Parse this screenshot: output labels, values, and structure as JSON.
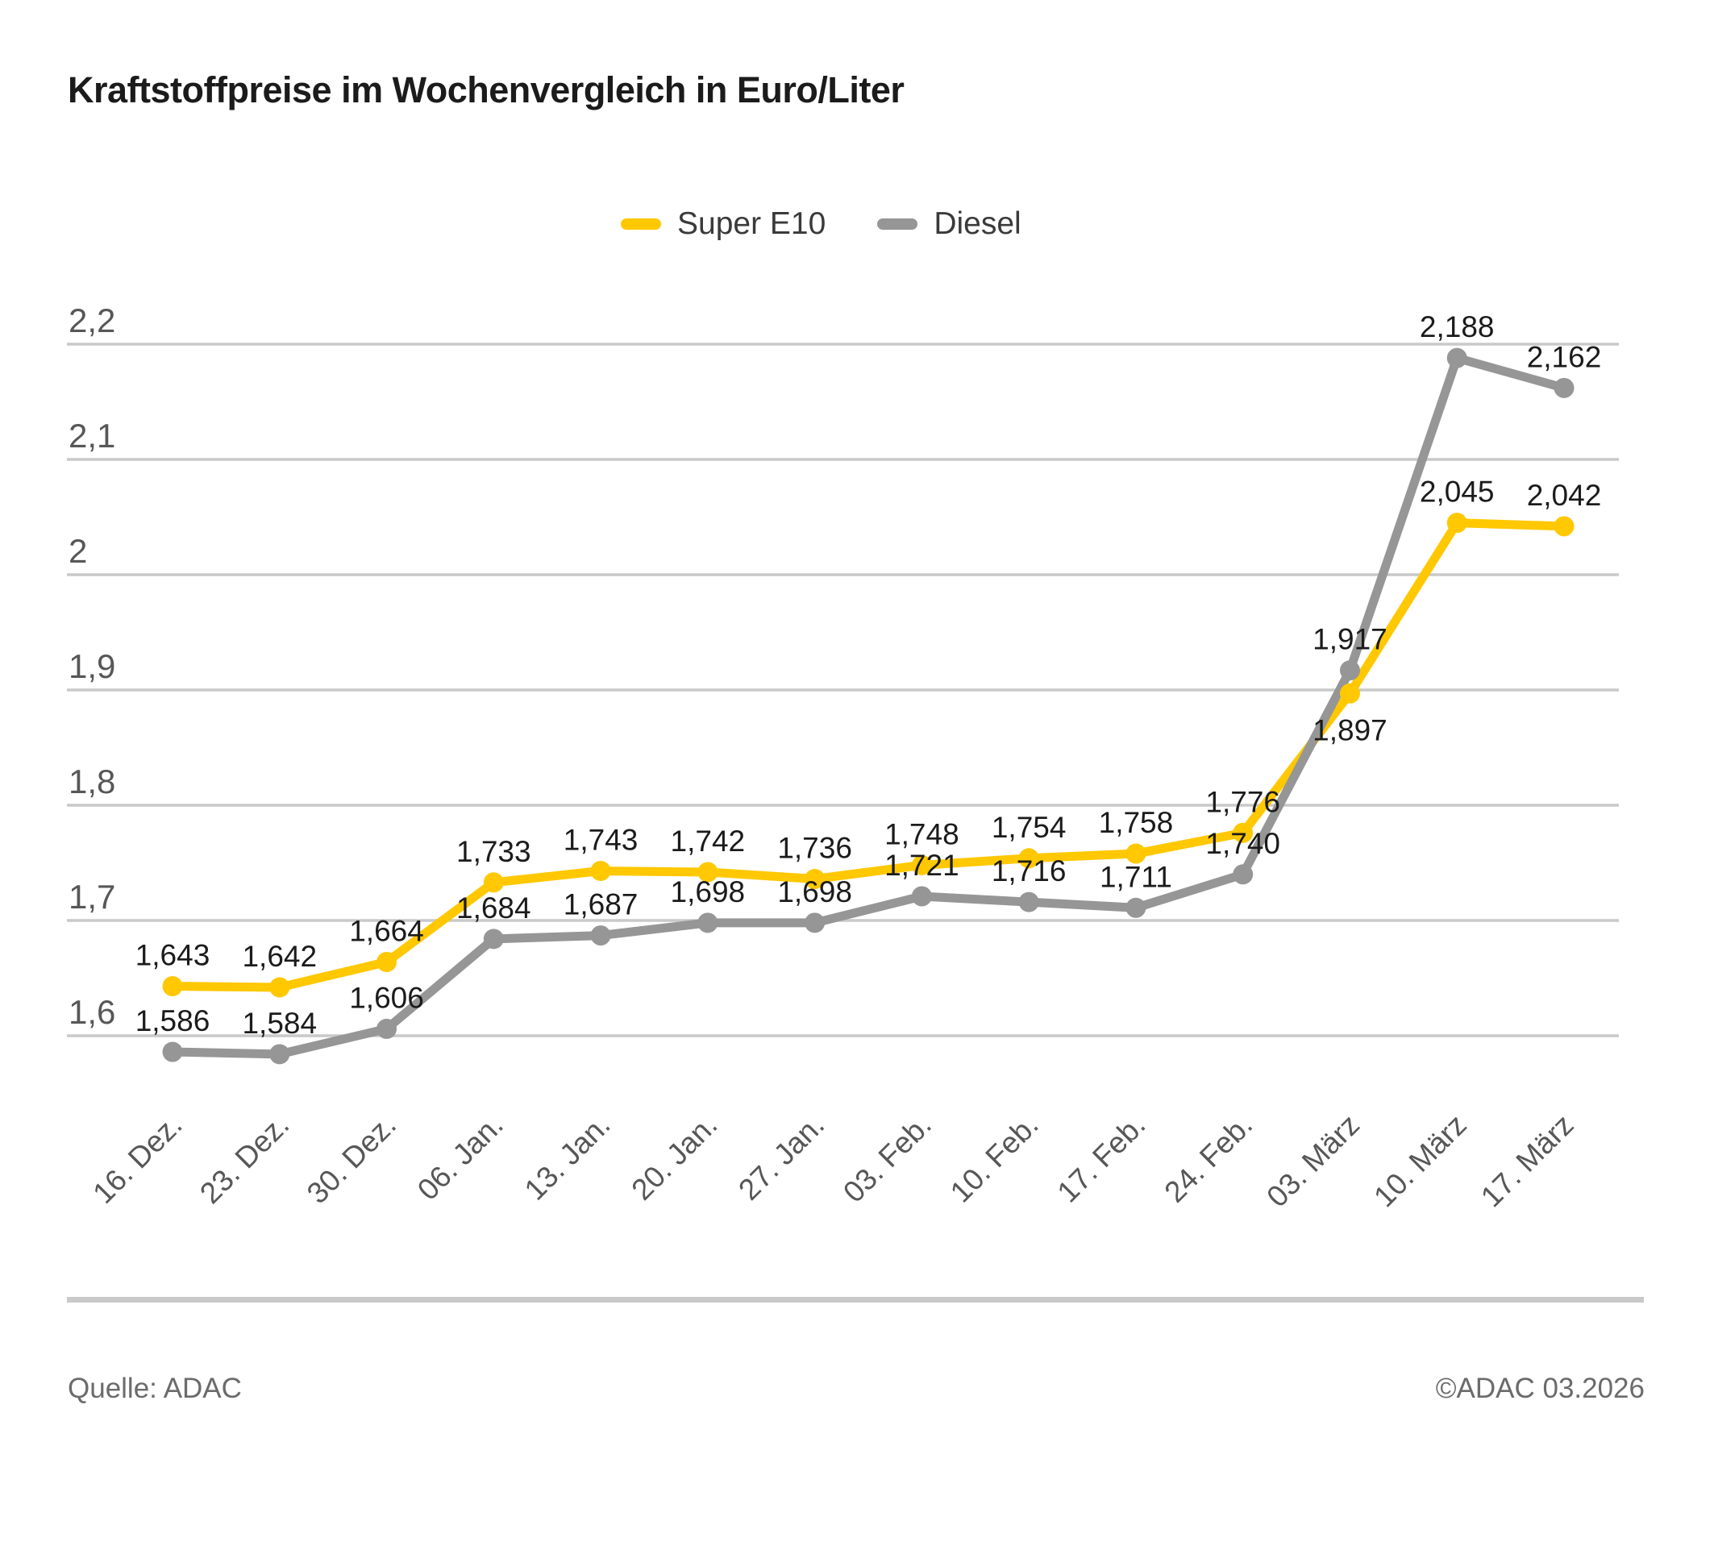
{
  "title": "Kraftstoffpreise im Wochenvergleich in Euro/Liter",
  "legend": {
    "items": [
      {
        "label": "Super E10",
        "color": "#FFC800"
      },
      {
        "label": "Diesel",
        "color": "#969696"
      }
    ]
  },
  "chart_data": {
    "type": "line",
    "title": "Kraftstoffpreise im Wochenvergleich in Euro/Liter",
    "unit": "Euro/Liter",
    "categories": [
      "16. Dez.",
      "23. Dez.",
      "30. Dez.",
      "06. Jan.",
      "13. Jan.",
      "20. Jan.",
      "27. Jan.",
      "03. Feb.",
      "10. Feb.",
      "17. Feb.",
      "24. Feb.",
      "03. März",
      "10. März",
      "17. März"
    ],
    "y_axis": {
      "min": 1.6,
      "max": 2.2,
      "step": 0.1,
      "tick_labels": [
        "1,6",
        "1,7",
        "1,8",
        "1,9",
        "2",
        "2,1",
        "2,2"
      ]
    },
    "ylim": [
      1.6,
      2.2
    ],
    "grid": true,
    "legend_position": "top",
    "series": [
      {
        "name": "Super E10",
        "color": "#FFC800",
        "values": [
          1.643,
          1.642,
          1.664,
          1.733,
          1.743,
          1.742,
          1.736,
          1.748,
          1.754,
          1.758,
          1.776,
          1.897,
          2.045,
          2.042
        ],
        "labels": [
          "1,643",
          "1,642",
          "1,664",
          "1,733",
          "1,743",
          "1,742",
          "1,736",
          "1,748",
          "1,754",
          "1,758",
          "1,776",
          "1,897",
          "2,045",
          "2,042"
        ],
        "label_below_indices": [
          11
        ]
      },
      {
        "name": "Diesel",
        "color": "#969696",
        "values": [
          1.586,
          1.584,
          1.606,
          1.684,
          1.687,
          1.698,
          1.698,
          1.721,
          1.716,
          1.711,
          1.74,
          1.917,
          2.188,
          2.162
        ],
        "labels": [
          "1,586",
          "1,584",
          "1,606",
          "1,684",
          "1,687",
          "1,698",
          "1,698",
          "1,721",
          "1,716",
          "1,711",
          "1,740",
          "1,917",
          "2,188",
          "2,162"
        ],
        "label_below_indices": []
      }
    ]
  },
  "footer": {
    "source": "Quelle: ADAC",
    "copyright": "©ADAC 03.2026"
  },
  "colors": {
    "grid": "#C9C9C9",
    "axis_text": "#575757",
    "value_label": "#1B1B1B",
    "divider": "#C9C9C9",
    "background": "#FFFFFF"
  }
}
